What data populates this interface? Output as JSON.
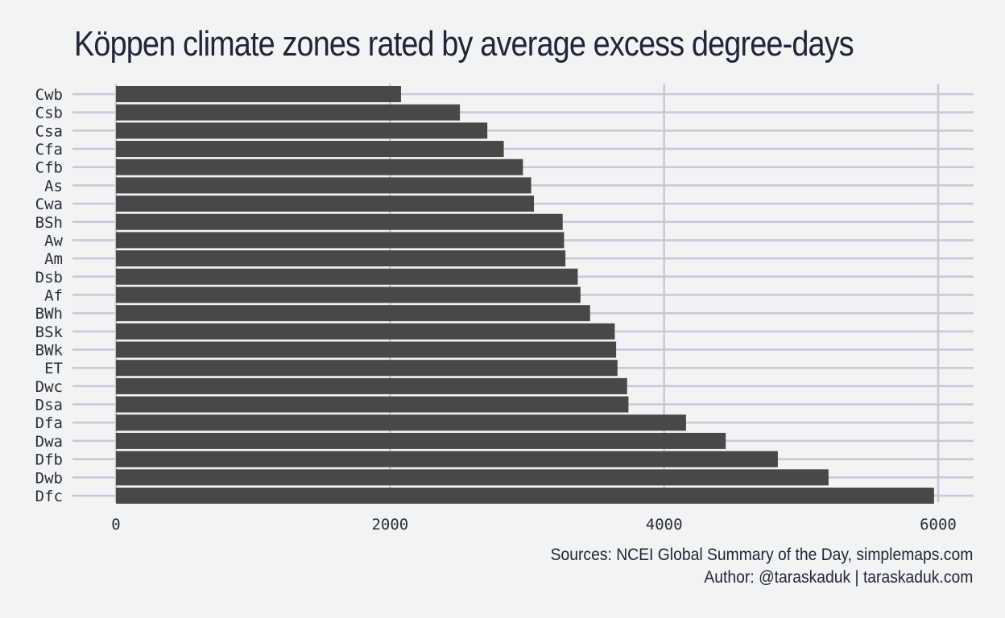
{
  "chart_data": {
    "type": "bar",
    "orientation": "horizontal",
    "title": "Köppen climate zones rated by average excess degree-days",
    "xlabel": "",
    "ylabel": "",
    "xlim": [
      0,
      6000
    ],
    "x_ticks": [
      0,
      2000,
      4000,
      6000
    ],
    "grid": true,
    "categories": [
      "Cwb",
      "Csb",
      "Csa",
      "Cfa",
      "Cfb",
      "As",
      "Cwa",
      "BSh",
      "Aw",
      "Am",
      "Dsb",
      "Af",
      "BWh",
      "BSk",
      "BWk",
      "ET",
      "Dwc",
      "Dsa",
      "Dfa",
      "Dwa",
      "Dfb",
      "Dwb",
      "Dfc"
    ],
    "values": [
      2080,
      2510,
      2710,
      2830,
      2970,
      3030,
      3050,
      3260,
      3270,
      3280,
      3370,
      3390,
      3460,
      3640,
      3650,
      3660,
      3730,
      3740,
      4160,
      4450,
      4830,
      5200,
      5970
    ]
  },
  "caption": {
    "sources": "Sources: NCEI Global Summary of the Day, simplemaps.com",
    "author": "Author: @taraskaduk | taraskaduk.com"
  },
  "colors": {
    "background": "#f1f3f5",
    "bar": "#484848",
    "grid": "#c8c8d6",
    "text": "#22253a"
  }
}
